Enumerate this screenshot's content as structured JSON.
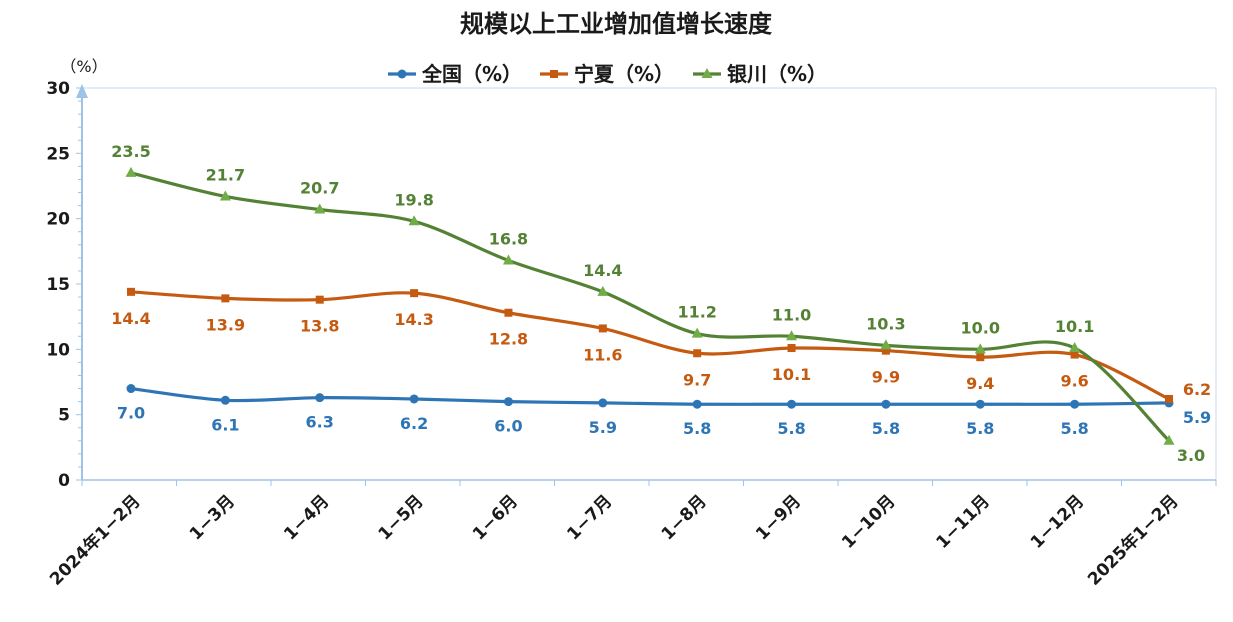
{
  "chart_data": {
    "type": "line",
    "title": "规模以上工业增加值增长速度",
    "ylabel": "（%）",
    "ylim": [
      0,
      30
    ],
    "yticks": [
      0,
      5,
      10,
      15,
      20,
      25,
      30
    ],
    "legend_position": "top",
    "categories": [
      "2024年1−2月",
      "1−3月",
      "1−4月",
      "1−5月",
      "1−6月",
      "1−7月",
      "1−8月",
      "1−9月",
      "1−10月",
      "1−11月",
      "1−12月",
      "2025年1−2月"
    ],
    "series": [
      {
        "name": "全国（%）",
        "color": "#2E75B6",
        "marker": "circle",
        "values": [
          7.0,
          6.1,
          6.3,
          6.2,
          6.0,
          5.9,
          5.8,
          5.8,
          5.8,
          5.8,
          5.8,
          5.9
        ],
        "labels": [
          "7.0",
          "6.1",
          "6.3",
          "6.2",
          "6.0",
          "5.9",
          "5.8",
          "5.8",
          "5.8",
          "5.8",
          "5.8",
          "5.9"
        ]
      },
      {
        "name": "宁夏（%）",
        "color": "#C55A11",
        "marker": "square",
        "values": [
          14.4,
          13.9,
          13.8,
          14.3,
          12.8,
          11.6,
          9.7,
          10.1,
          9.9,
          9.4,
          9.6,
          6.2
        ],
        "labels": [
          "14.4",
          "13.9",
          "13.8",
          "14.3",
          "12.8",
          "11.6",
          "9.7",
          "10.1",
          "9.9",
          "9.4",
          "9.6",
          "6.2"
        ]
      },
      {
        "name": "银川（%）",
        "color": "#548235",
        "marker": "triangle",
        "values": [
          23.5,
          21.7,
          20.7,
          19.8,
          16.8,
          14.4,
          11.2,
          11.0,
          10.3,
          10.0,
          10.1,
          3.0
        ],
        "labels": [
          "23.5",
          "21.7",
          "20.7",
          "19.8",
          "16.8",
          "14.4",
          "11.2",
          "11.0",
          "10.3",
          "10.0",
          "10.1",
          "3.0"
        ]
      }
    ]
  }
}
